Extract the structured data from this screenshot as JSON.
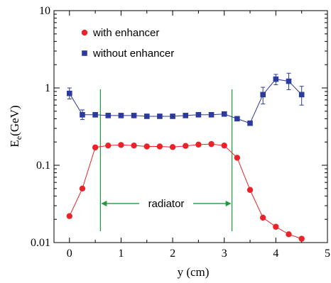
{
  "chart_data": {
    "type": "line",
    "xlabel": "y (cm)",
    "ylabel_main": "E",
    "ylabel_sub": "e",
    "ylabel_unit": "(GeV)",
    "xlim": [
      -0.3,
      5
    ],
    "ylim": [
      0.01,
      10
    ],
    "yscale": "log",
    "xticks": [
      0,
      1,
      2,
      3,
      4,
      5
    ],
    "xtick_labels": [
      "0",
      "1",
      "2",
      "3",
      "4",
      "5"
    ],
    "yticks": [
      0.01,
      0.1,
      1,
      10
    ],
    "ytick_labels": [
      "0.01",
      "0.1",
      "1",
      "10"
    ],
    "legend_position": "top-left",
    "series": [
      {
        "name": "with enhancer",
        "marker": "circle",
        "color": "#e8232a",
        "x": [
          0,
          0.25,
          0.5,
          0.75,
          1.0,
          1.25,
          1.5,
          1.75,
          2.0,
          2.25,
          2.5,
          2.75,
          3.0,
          3.25,
          3.5,
          3.75,
          4.0,
          4.25,
          4.5
        ],
        "y": [
          0.022,
          0.05,
          0.17,
          0.18,
          0.183,
          0.18,
          0.175,
          0.175,
          0.172,
          0.178,
          0.185,
          0.188,
          0.18,
          0.125,
          0.048,
          0.021,
          0.016,
          0.0128,
          0.0112
        ]
      },
      {
        "name": "without enhancer",
        "marker": "square",
        "color": "#2b3a9c",
        "x": [
          0,
          0.25,
          0.5,
          0.75,
          1.0,
          1.25,
          1.5,
          1.75,
          2.0,
          2.25,
          2.5,
          2.75,
          3.0,
          3.25,
          3.5,
          3.75,
          4.0,
          4.25,
          4.5
        ],
        "y": [
          0.85,
          0.45,
          0.45,
          0.44,
          0.44,
          0.44,
          0.43,
          0.43,
          0.43,
          0.44,
          0.45,
          0.45,
          0.46,
          0.4,
          0.35,
          0.82,
          1.3,
          1.22,
          0.82
        ],
        "err_low": [
          0.72,
          0.39,
          0.42,
          0.42,
          0.42,
          0.42,
          0.41,
          0.41,
          0.41,
          0.42,
          0.43,
          0.43,
          0.44,
          0.38,
          0.34,
          0.62,
          1.1,
          0.95,
          0.6
        ],
        "err_high": [
          1.0,
          0.52,
          0.48,
          0.46,
          0.46,
          0.46,
          0.45,
          0.45,
          0.45,
          0.46,
          0.47,
          0.47,
          0.48,
          0.42,
          0.37,
          1.02,
          1.5,
          1.55,
          1.05
        ]
      }
    ],
    "annotations": {
      "radiator_label": "radiator",
      "radiator_x": [
        0.6,
        3.15
      ],
      "radiator_y_arrow": 0.032,
      "radiator_color": "#1f9a3a"
    }
  }
}
